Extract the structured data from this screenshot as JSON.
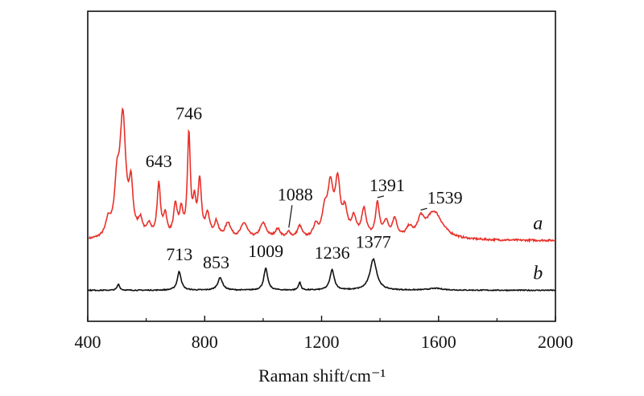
{
  "chart_data": {
    "type": "line",
    "xlabel": "Raman shift/cm⁻¹",
    "xlim": [
      400,
      2000
    ],
    "x_ticks": [
      400,
      800,
      1200,
      1600,
      2000
    ],
    "x_tick_labels": [
      "400",
      "800",
      "1200",
      "1600",
      "2000"
    ],
    "y_ticks_shown": false,
    "grid": false,
    "legend": "none",
    "series": [
      {
        "name": "a",
        "color": "#e8302a",
        "baseline": 0.26,
        "peaks": [
          {
            "x": 470,
            "h": 0.05,
            "w": 10
          },
          {
            "x": 500,
            "h": 0.15,
            "w": 10
          },
          {
            "x": 520,
            "h": 0.38,
            "w": 12
          },
          {
            "x": 548,
            "h": 0.15,
            "w": 8
          },
          {
            "x": 580,
            "h": 0.05,
            "w": 10
          },
          {
            "x": 610,
            "h": 0.04,
            "w": 8
          },
          {
            "x": 643,
            "h": 0.17,
            "w": 7
          },
          {
            "x": 665,
            "h": 0.07,
            "w": 7
          },
          {
            "x": 700,
            "h": 0.1,
            "w": 8
          },
          {
            "x": 720,
            "h": 0.08,
            "w": 7
          },
          {
            "x": 746,
            "h": 0.33,
            "w": 6
          },
          {
            "x": 765,
            "h": 0.1,
            "w": 6
          },
          {
            "x": 783,
            "h": 0.18,
            "w": 7
          },
          {
            "x": 810,
            "h": 0.07,
            "w": 9
          },
          {
            "x": 840,
            "h": 0.05,
            "w": 9
          },
          {
            "x": 880,
            "h": 0.05,
            "w": 12
          },
          {
            "x": 935,
            "h": 0.05,
            "w": 14
          },
          {
            "x": 1000,
            "h": 0.05,
            "w": 14
          },
          {
            "x": 1050,
            "h": 0.03,
            "w": 12
          },
          {
            "x": 1088,
            "h": 0.02,
            "w": 8
          },
          {
            "x": 1125,
            "h": 0.04,
            "w": 10
          },
          {
            "x": 1180,
            "h": 0.04,
            "w": 10
          },
          {
            "x": 1210,
            "h": 0.07,
            "w": 10
          },
          {
            "x": 1230,
            "h": 0.16,
            "w": 12
          },
          {
            "x": 1255,
            "h": 0.17,
            "w": 10
          },
          {
            "x": 1280,
            "h": 0.08,
            "w": 10
          },
          {
            "x": 1310,
            "h": 0.06,
            "w": 10
          },
          {
            "x": 1345,
            "h": 0.09,
            "w": 10
          },
          {
            "x": 1391,
            "h": 0.11,
            "w": 8
          },
          {
            "x": 1420,
            "h": 0.05,
            "w": 10
          },
          {
            "x": 1450,
            "h": 0.06,
            "w": 10
          },
          {
            "x": 1500,
            "h": 0.03,
            "w": 12
          },
          {
            "x": 1539,
            "h": 0.05,
            "w": 12
          },
          {
            "x": 1585,
            "h": 0.09,
            "w": 35
          }
        ],
        "annotations": [
          {
            "label": "643",
            "x": 643
          },
          {
            "label": "746",
            "x": 746
          },
          {
            "label": "1088",
            "x": 1088
          },
          {
            "label": "1391",
            "x": 1391
          },
          {
            "label": "1539",
            "x": 1539
          }
        ],
        "tag": "a"
      },
      {
        "name": "b",
        "color": "#111111",
        "baseline": 0.1,
        "peaks": [
          {
            "x": 505,
            "h": 0.02,
            "w": 5
          },
          {
            "x": 713,
            "h": 0.06,
            "w": 8
          },
          {
            "x": 853,
            "h": 0.04,
            "w": 10
          },
          {
            "x": 1009,
            "h": 0.07,
            "w": 8
          },
          {
            "x": 1125,
            "h": 0.025,
            "w": 5
          },
          {
            "x": 1236,
            "h": 0.065,
            "w": 9
          },
          {
            "x": 1377,
            "h": 0.1,
            "w": 14
          },
          {
            "x": 1590,
            "h": 0.006,
            "w": 30
          }
        ],
        "annotations": [
          {
            "label": "713",
            "x": 713
          },
          {
            "label": "853",
            "x": 853
          },
          {
            "label": "1009",
            "x": 1009
          },
          {
            "label": "1236",
            "x": 1236
          },
          {
            "label": "1377",
            "x": 1377
          }
        ],
        "tag": "b"
      }
    ]
  }
}
